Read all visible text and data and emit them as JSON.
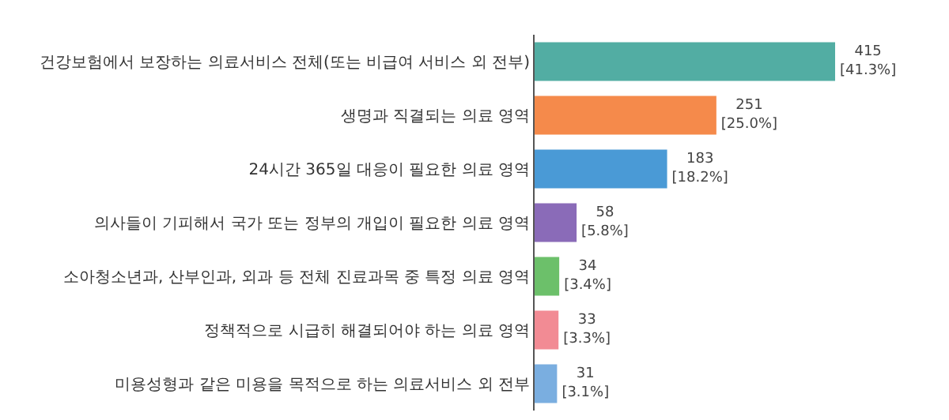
{
  "chart_data": {
    "type": "bar",
    "orientation": "horizontal",
    "categories": [
      "건강보험에서 보장하는 의료서비스 전체(또는 비급여 서비스 외 전부)",
      "생명과 직결되는 의료 영역",
      "24시간 365일 대응이 필요한 의료 영역",
      "의사들이 기피해서 국가 또는 정부의 개입이 필요한 의료 영역",
      "소아청소년과, 산부인과, 외과 등 전체 진료과목 중 특정 의료 영역",
      "정책적으로 시급히 해결되어야 하는 의료 영역",
      "미용성형과 같은 미용을 목적으로 하는 의료서비스 외 전부"
    ],
    "values": [
      415,
      251,
      183,
      58,
      34,
      33,
      31
    ],
    "colors": [
      "#52ada3",
      "#f58a4b",
      "#4a9ad6",
      "#8a6bb8",
      "#6cc06a",
      "#f28b94",
      "#7aaee0"
    ],
    "value_labels": [
      "415\n[41.3%]",
      "251\n[25.0%]",
      "183\n[18.2%]",
      "58\n[5.8%]",
      "34\n[3.4%]",
      "33\n[3.3%]",
      "31\n[3.1%]"
    ],
    "tick_labels": "y",
    "legend": false
  }
}
